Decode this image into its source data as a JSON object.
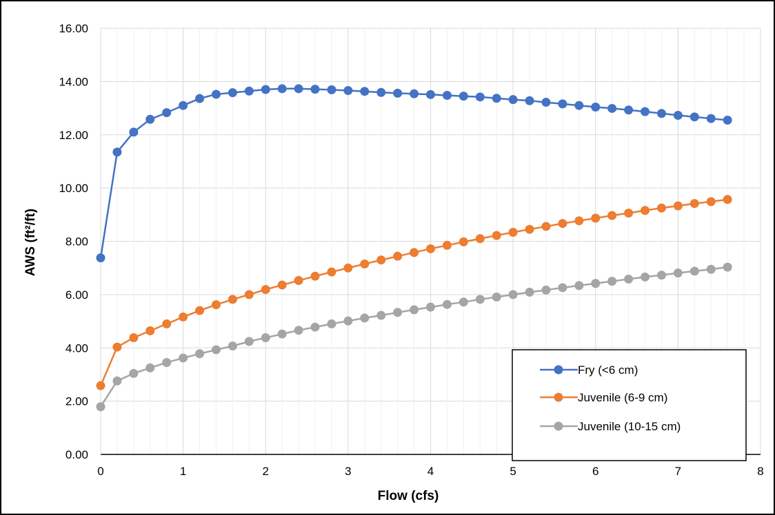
{
  "chart_data": {
    "type": "line",
    "title": "",
    "xlabel": "Flow (cfs)",
    "ylabel": "AWS (ft²/ft)",
    "xlim": [
      0,
      8
    ],
    "ylim": [
      0,
      16
    ],
    "x_ticks": [
      "0",
      "1",
      "2",
      "3",
      "4",
      "5",
      "6",
      "7",
      "8"
    ],
    "y_ticks": [
      "0.00",
      "2.00",
      "4.00",
      "6.00",
      "8.00",
      "10.00",
      "12.00",
      "14.00",
      "16.00"
    ],
    "grid": true,
    "legend_position": "bottom-right",
    "x": [
      0,
      0.2,
      0.4,
      0.6,
      0.8,
      1.0,
      1.2,
      1.4,
      1.6,
      1.8,
      2.0,
      2.2,
      2.4,
      2.6,
      2.8,
      3.0,
      3.2,
      3.4,
      3.6,
      3.8,
      4.0,
      4.2,
      4.4,
      4.6,
      4.8,
      5.0,
      5.2,
      5.4,
      5.6,
      5.8,
      6.0,
      6.2,
      6.4,
      6.6,
      6.8,
      7.0,
      7.2,
      7.4,
      7.6
    ],
    "series": [
      {
        "name": "Fry (<6 cm)",
        "color": "#4472C4",
        "values": [
          7.38,
          11.35,
          12.1,
          12.58,
          12.83,
          13.1,
          13.36,
          13.52,
          13.58,
          13.64,
          13.7,
          13.73,
          13.73,
          13.71,
          13.69,
          13.66,
          13.63,
          13.59,
          13.56,
          13.54,
          13.51,
          13.48,
          13.45,
          13.42,
          13.37,
          13.32,
          13.28,
          13.22,
          13.16,
          13.1,
          13.04,
          12.99,
          12.93,
          12.87,
          12.8,
          12.73,
          12.67,
          12.61,
          12.55
        ]
      },
      {
        "name": "Juvenile (6-9 cm)",
        "color": "#ED7D31",
        "values": [
          2.58,
          4.03,
          4.38,
          4.64,
          4.9,
          5.16,
          5.4,
          5.62,
          5.82,
          6.0,
          6.19,
          6.36,
          6.53,
          6.69,
          6.85,
          7.0,
          7.15,
          7.3,
          7.44,
          7.58,
          7.72,
          7.85,
          7.98,
          8.1,
          8.22,
          8.34,
          8.45,
          8.56,
          8.67,
          8.77,
          8.87,
          8.97,
          9.06,
          9.16,
          9.25,
          9.33,
          9.42,
          9.49,
          9.57
        ]
      },
      {
        "name": "Juvenile (10-15 cm)",
        "color": "#A5A5A5",
        "values": [
          1.79,
          2.76,
          3.04,
          3.25,
          3.45,
          3.62,
          3.78,
          3.93,
          4.07,
          4.24,
          4.38,
          4.52,
          4.66,
          4.78,
          4.9,
          5.01,
          5.12,
          5.22,
          5.33,
          5.43,
          5.53,
          5.63,
          5.72,
          5.82,
          5.91,
          6.0,
          6.09,
          6.17,
          6.26,
          6.34,
          6.42,
          6.5,
          6.58,
          6.66,
          6.73,
          6.81,
          6.88,
          6.95,
          7.03
        ]
      }
    ]
  }
}
